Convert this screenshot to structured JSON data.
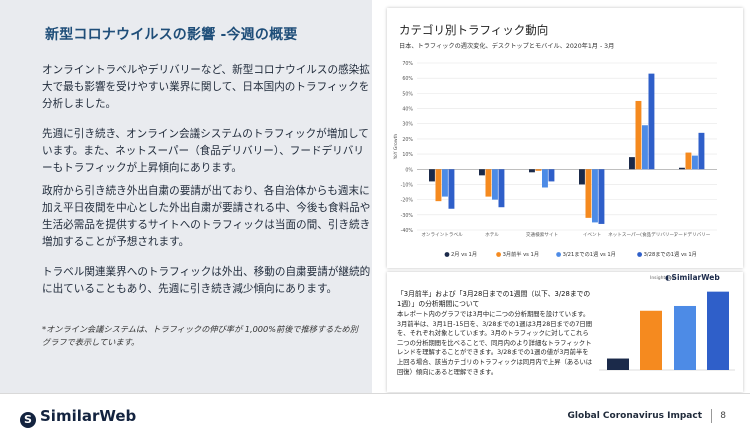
{
  "left": {
    "title": "新型コロナウイルスの影響 -今週の概要",
    "paragraphs": [
      "オンライントラベルやデリバリーなど、新型コロナウイルスの感染拡大で最も影響を受けやすい業界に関して、日本国内のトラフィックを分析しました。",
      "先週に引き続き、オンライン会議システムのトラフィックが増加しています。また、ネットスーパー（食品デリバリー）、フードデリバリーもトラフィックが上昇傾向にあります。",
      "政府から引き続き外出自粛の要請が出ており、各自治体からも週末に加え平日夜間を中心とした外出自粛が要請される中、今後も食料品や生活必需品を提供するサイトへのトラフィックは当面の間、引き続き増加することが予想されます。",
      "トラベル関連業界へのトラフィックは外出、移動の自粛要請が継続的に出ていることもあり、先週に引き続き減少傾向にあります。"
    ],
    "note": "*オンライン会議システムは、トラフィックの伸び率が 1,000%前後で推移するため別グラフで表示しています。"
  },
  "chart_card": {
    "title": "カテゴリ別トラフィック動向",
    "subtitle": "日本、トラフィックの週次変化、デスクトップとモバイル、2020年1月 - 3月"
  },
  "chart_data": {
    "type": "bar",
    "title": "カテゴリ別トラフィック動向",
    "ylabel": "YoY Growth",
    "ylim": [
      -40,
      70
    ],
    "yticks": [
      "70%",
      "60%",
      "50%",
      "40%",
      "30%",
      "20%",
      "10%",
      "0%",
      "-10%",
      "-20%",
      "-30%",
      "-40%"
    ],
    "categories": [
      "オンライントラベル",
      "ホテル",
      "交通検索サイト",
      "イベント",
      "ネットスーパー(食品デリバリー)",
      "フードデリバリー"
    ],
    "series": [
      {
        "name": "2月 vs 1月",
        "color": "#1b2a4a",
        "values": [
          -8,
          -4,
          -2,
          -10,
          8,
          1
        ]
      },
      {
        "name": "3月前半 vs 1月",
        "color": "#f58a1f",
        "values": [
          -21,
          -18,
          -1,
          -32,
          45,
          11
        ]
      },
      {
        "name": "3/21までの1週 vs 1月",
        "color": "#4d8be6",
        "values": [
          -18,
          -20,
          -12,
          -35,
          29,
          9
        ]
      },
      {
        "name": "3/28までの1週 vs 1月",
        "color": "#2f5fc9",
        "values": [
          -26,
          -25,
          -8,
          -36,
          63,
          24
        ]
      }
    ]
  },
  "card2": {
    "heading": "「3月前半」および「3月28日までの1週間（以下、3/28までの1週）」の分析期間について",
    "body": "本レポート内のグラフでは3月中に二つの分析期間を設けています。3月前半は、3月1日-15日を、3/28までの1週は3月28日までの7日間を、それぞれ対象としています。3月のトラフィックに対してこれら二つの分析期間を比べることで、同月内のより詳細なトラフィックトレンドを理解することができます。3/28までの1週の値が3月前半を上回る場合、該当カテゴリのトラフィックは同月内で上昇（あるいは回復）傾向にあると理解できます。",
    "insights_label": "Insights by",
    "brand": "SimilarWeb"
  },
  "mini_chart_data": {
    "type": "bar",
    "series": [
      {
        "color": "#1b2a4a",
        "value": 12
      },
      {
        "color": "#f58a1f",
        "value": 62
      },
      {
        "color": "#4d8be6",
        "value": 67
      },
      {
        "color": "#2f5fc9",
        "value": 82
      }
    ],
    "ylim": [
      0,
      90
    ]
  },
  "footer": {
    "brand": "SimilarWeb",
    "report": "Global Coronavirus Impact",
    "page": "8"
  }
}
